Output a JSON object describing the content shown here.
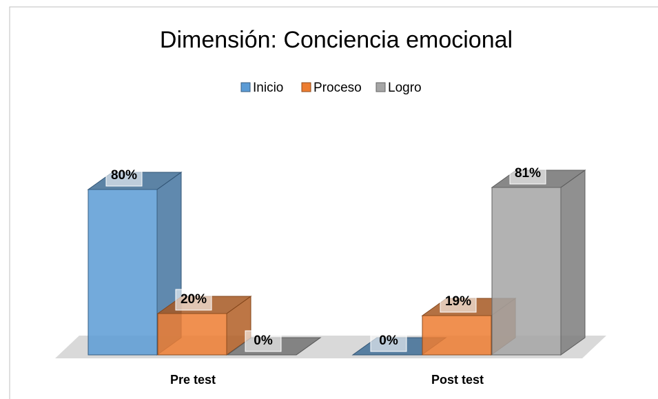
{
  "chart_data": {
    "type": "bar3d",
    "title": "Dimensión: Conciencia emocional",
    "categories": [
      "Pre test",
      "Post test"
    ],
    "series": [
      {
        "name": "Inicio",
        "color": "#5b9bd5",
        "values": [
          80,
          0
        ],
        "value_labels": [
          "80%",
          "0%"
        ]
      },
      {
        "name": "Proceso",
        "color": "#ed7d31",
        "values": [
          20,
          19
        ],
        "value_labels": [
          "20%",
          "19%"
        ]
      },
      {
        "name": "Logro",
        "color": "#a5a5a5",
        "values": [
          0,
          81
        ],
        "value_labels": [
          "0%",
          "81%"
        ]
      }
    ],
    "legend": "top"
  }
}
